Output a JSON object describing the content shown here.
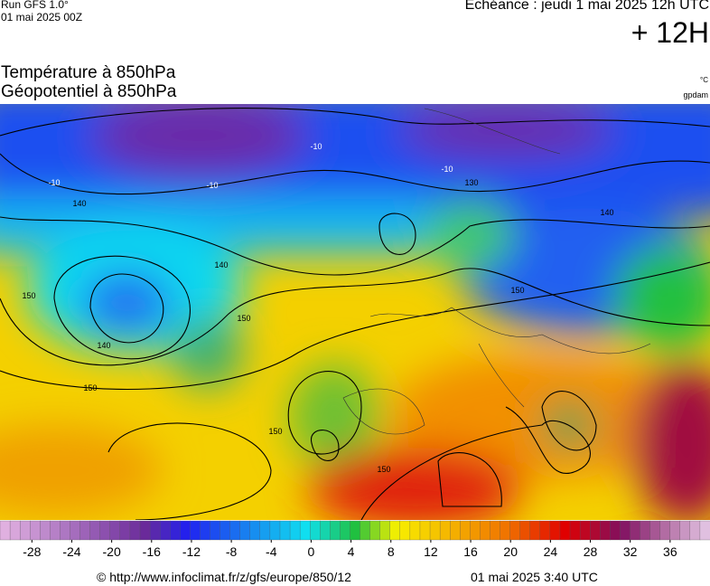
{
  "header": {
    "run": "Run GFS 1.0°",
    "run_date": "01 mai 2025 00Z",
    "forecast": "Echéance : jeudi 1 mai 2025 12h UTC",
    "lead": "+ 12H",
    "title_line1": "Température à 850hPa",
    "title_line2": "Géopotentiel à 850hPa",
    "unit_temp": "°C",
    "unit_geo": "gpdam"
  },
  "map": {
    "contour_labels": [
      "-10",
      "-10",
      "-10",
      "-10",
      "130",
      "140",
      "140",
      "140",
      "140",
      "150",
      "150",
      "150",
      "150",
      "150",
      "150"
    ]
  },
  "colorbar": {
    "range": [
      -31.2,
      40
    ],
    "ticks": [
      -28,
      -24,
      -20,
      -16,
      -12,
      -8,
      -4,
      0,
      4,
      8,
      12,
      16,
      20,
      24,
      28,
      32,
      36
    ]
  },
  "footer": {
    "source": "© http://www.infoclimat.fr/z/gfs/europe/850/12",
    "generated": "01 mai 2025  3:40 UTC"
  }
}
